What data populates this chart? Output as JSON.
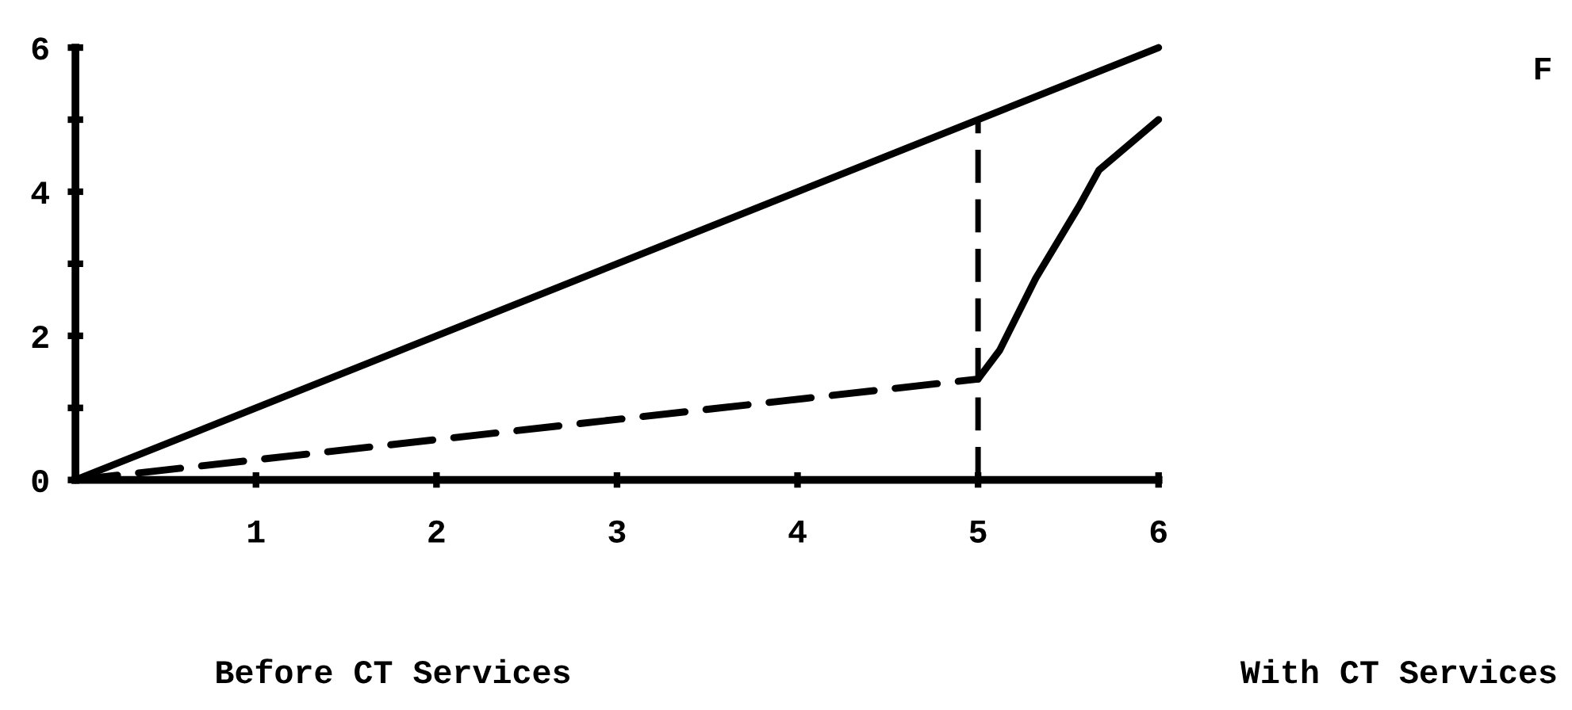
{
  "chart_data": {
    "type": "line",
    "series": [
      {
        "color": "#000000",
        "line_style": "solid",
        "x": [
          0,
          6
        ],
        "values": [
          0,
          6
        ]
      },
      {
        "color": "#000000",
        "line_style": "dashed",
        "x": [
          0,
          5
        ],
        "values": [
          0,
          1.4
        ]
      },
      {
        "color": "#000000",
        "line_style": "solid",
        "x": [
          5,
          5.12,
          5.32,
          5.56,
          5.67,
          6
        ],
        "values": [
          1.4,
          1.8,
          2.8,
          3.8,
          4.3,
          5
        ]
      }
    ],
    "ref_lines": [
      {
        "axis": "x",
        "value": 5,
        "color": "#000000",
        "line_style": "dashed"
      }
    ],
    "xlim": [
      0,
      6
    ],
    "ylim": [
      0,
      6
    ],
    "xticks": [
      1,
      2,
      3,
      4,
      5,
      6
    ],
    "yticks": [
      0,
      {
        "value": 1,
        "label": null
      },
      2,
      {
        "value": 3,
        "label": null
      },
      4,
      {
        "value": 5,
        "label": null
      },
      6
    ],
    "grid": false,
    "legend": false,
    "marker": "none",
    "annotations": [
      "Before CT Services",
      "With CT Services",
      "F"
    ]
  }
}
